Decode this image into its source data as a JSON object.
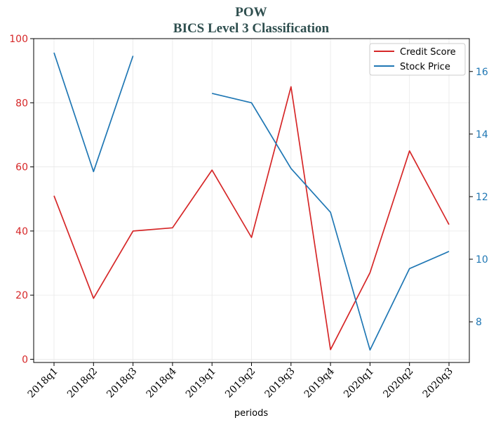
{
  "chart_data": {
    "type": "line",
    "title": "POW",
    "subtitle": "BICS Level 3 Classification",
    "xlabel": "periods",
    "categories": [
      "2018q1",
      "2018q2",
      "2018q3",
      "2018q4",
      "2019q1",
      "2019q2",
      "2019q3",
      "2019q4",
      "2020q1",
      "2020q2",
      "2020q3"
    ],
    "y_left": {
      "lim": [
        -1,
        100
      ],
      "ticks": [
        0,
        20,
        40,
        60,
        80,
        100
      ],
      "color": "#d62728"
    },
    "y_right": {
      "lim": [
        6.7,
        17.05
      ],
      "ticks": [
        8,
        10,
        12,
        14,
        16
      ],
      "color": "#1f77b4"
    },
    "grid": true,
    "legend_position": "top-right",
    "series": [
      {
        "name": "Credit Score",
        "axis": "left",
        "color": "#d62728",
        "values": [
          51,
          19,
          40,
          41,
          59,
          38,
          85,
          3,
          27,
          65,
          42
        ]
      },
      {
        "name": "Stock Price",
        "axis": "right",
        "color": "#1f77b4",
        "values": [
          16.6,
          12.8,
          16.5,
          null,
          15.3,
          15.0,
          12.9,
          11.5,
          7.1,
          9.7,
          10.25
        ]
      }
    ]
  }
}
